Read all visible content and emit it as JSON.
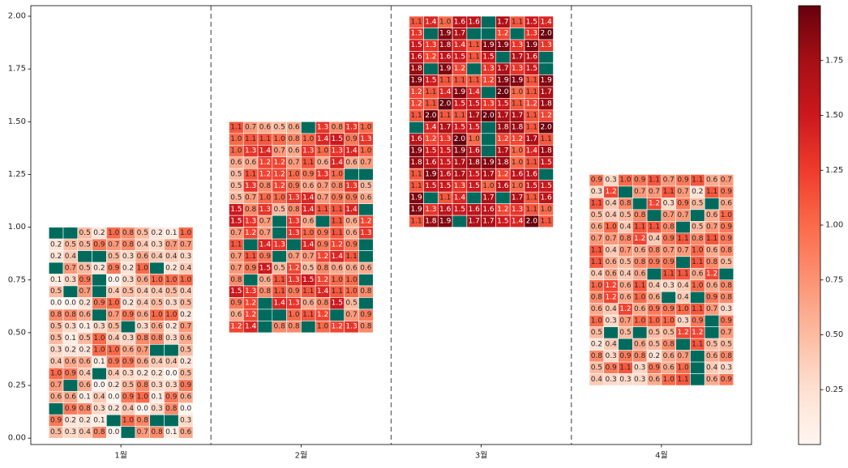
{
  "chart_data": {
    "type": "heatmap",
    "title": "",
    "xlabel": "",
    "ylabel": "",
    "xlim": [
      0.5,
      4.5
    ],
    "ylim": [
      -0.03,
      2.05
    ],
    "x_tick_labels": [
      "1월",
      "2월",
      "3월",
      "4월"
    ],
    "y_ticks": [
      0.0,
      0.25,
      0.5,
      0.75,
      1.0,
      1.25,
      1.5,
      1.75,
      2.0
    ],
    "y_tick_labels": [
      "0.00",
      "0.25",
      "0.50",
      "0.75",
      "1.00",
      "1.25",
      "1.50",
      "1.75",
      "2.00"
    ],
    "grid": false,
    "separators_at": [
      1.5,
      2.5,
      3.5
    ],
    "colormap": "Reds",
    "missing_color": "#006b5d",
    "colorbar": {
      "vmin": 0.0,
      "vmax": 2.0,
      "ticks": [
        0.25,
        0.5,
        0.75,
        1.0,
        1.25,
        1.5,
        1.75
      ],
      "tick_labels": [
        "0.25",
        "0.50",
        "0.75",
        "1.00",
        "1.25",
        "1.50",
        "1.75"
      ],
      "placement": "right"
    },
    "blocks": [
      {
        "category": "1월",
        "y_range": [
          0.0,
          1.0
        ],
        "cells": [
          [
            "",
            "",
            "0.5",
            "0.2",
            "1.0",
            "0.8",
            "0.5",
            "0.2",
            "0.1",
            "1.0"
          ],
          [
            "0.2",
            "0.5",
            "0.5",
            "0.9",
            "0.7",
            "0.8",
            "0.4",
            "0.3",
            "0.7",
            "0.7"
          ],
          [
            "0.2",
            "0.4",
            "",
            "",
            "0.5",
            "0.3",
            "0.6",
            "0.4",
            "0.4",
            "0.3"
          ],
          [
            "",
            "0.7",
            "0.5",
            "0.2",
            "0.9",
            "0.2",
            "1.0",
            "",
            "0.2",
            "0.4"
          ],
          [
            "0.1",
            "0.3",
            "0.9",
            "",
            "0.0",
            "0.3",
            "0.6",
            "1.0",
            "1.0",
            "1.0"
          ],
          [
            "0.5",
            "",
            "0.7",
            "",
            "0.4",
            "0.5",
            "0.4",
            "0.4",
            "0.5",
            "0.4"
          ],
          [
            "0.0",
            "0.0",
            "0.2",
            "0.9",
            "1.0",
            "0.2",
            "0.4",
            "0.5",
            "0.3",
            "0.5"
          ],
          [
            "0.8",
            "0.8",
            "0.6",
            "",
            "0.7",
            "0.9",
            "0.6",
            "1.0",
            "1.0",
            "0.2"
          ],
          [
            "0.5",
            "0.3",
            "0.1",
            "0.3",
            "0.5",
            "",
            "0.3",
            "0.6",
            "0.2",
            "0.7"
          ],
          [
            "0.5",
            "0.1",
            "0.5",
            "1.0",
            "0.4",
            "0.3",
            "0.8",
            "0.8",
            "0.3",
            "0.6"
          ],
          [
            "0.3",
            "0.2",
            "0.2",
            "1.0",
            "1.0",
            "0.6",
            "0.7",
            "",
            "",
            "0.5"
          ],
          [
            "0.4",
            "0.6",
            "0.6",
            "0.1",
            "0.9",
            "0.9",
            "0.6",
            "0.4",
            "0.4",
            "0.2"
          ],
          [
            "1.0",
            "0.9",
            "0.4",
            "",
            "0.4",
            "0.3",
            "0.2",
            "0.2",
            "0.0",
            "0.5"
          ],
          [
            "0.7",
            "",
            "0.6",
            "0.0",
            "0.2",
            "0.5",
            "0.8",
            "0.3",
            "0.3",
            "0.9"
          ],
          [
            "0.6",
            "0.6",
            "0.1",
            "0.4",
            "0.0",
            "0.9",
            "1.0",
            "0.1",
            "0.9",
            "0.6"
          ],
          [
            "",
            "0.9",
            "0.8",
            "0.3",
            "0.2",
            "0.4",
            "0.0",
            "0.3",
            "0.8",
            "0.0"
          ],
          [
            "0.9",
            "0.2",
            "0.2",
            "0.1",
            "",
            "1.0",
            "0.8",
            "",
            "",
            "0.3"
          ],
          [
            "0.5",
            "0.3",
            "0.4",
            "0.8",
            "0.0",
            "",
            "0.7",
            "0.8",
            "0.1",
            "0.6"
          ]
        ]
      },
      {
        "category": "2월",
        "y_range": [
          0.5,
          1.5
        ],
        "cells": [
          [
            "1.1",
            "0.7",
            "0.6",
            "0.5",
            "0.6",
            "",
            "1.3",
            "0.8",
            "1.3",
            "1.0"
          ],
          [
            "1.0",
            "1.1",
            "1.1",
            "1.0",
            "0.8",
            "1.0",
            "1.4",
            "1.5",
            "0.9",
            "1.3"
          ],
          [
            "1.0",
            "1.3",
            "1.4",
            "0.7",
            "0.6",
            "1.3",
            "1.0",
            "1.3",
            "1.4",
            "1.0"
          ],
          [
            "0.6",
            "0.6",
            "1.2",
            "1.2",
            "0.7",
            "1.1",
            "0.6",
            "1.4",
            "0.6",
            "0.7"
          ],
          [
            "0.5",
            "1.1",
            "1.2",
            "1.2",
            "1.0",
            "0.9",
            "1.3",
            "1.0",
            "",
            ""
          ],
          [
            "0.5",
            "1.3",
            "0.8",
            "1.2",
            "0.9",
            "0.6",
            "0.7",
            "0.8",
            "1.3",
            "0.5"
          ],
          [
            "0.5",
            "0.7",
            "1.0",
            "1.0",
            "1.3",
            "1.4",
            "0.7",
            "0.9",
            "0.9",
            "0.6"
          ],
          [
            "1.5",
            "0.8",
            "1.3",
            "0.5",
            "0.8",
            "1.4",
            "1.1",
            "1.1",
            "1.4",
            ""
          ],
          [
            "1.5",
            "1.3",
            "0.7",
            "",
            "1.3",
            "0.6",
            "",
            "1.1",
            "0.6",
            "1.2"
          ],
          [
            "0.7",
            "1.2",
            "0.7",
            "",
            "1.3",
            "1.0",
            "0.9",
            "1.1",
            "0.6",
            "1.3"
          ],
          [
            "1.1",
            "",
            "1.4",
            "1.3",
            "",
            "1.4",
            "0.9",
            "1.2",
            "0.9",
            ""
          ],
          [
            "0.7",
            "1.1",
            "0.9",
            "",
            "0.7",
            "0.7",
            "1.2",
            "1.4",
            "1.1",
            ""
          ],
          [
            "0.7",
            "0.9",
            "1.5",
            "0.5",
            "1.2",
            "0.5",
            "0.8",
            "0.6",
            "0.6",
            "0.6"
          ],
          [
            "0.8",
            "",
            "0.6",
            "1.1",
            "1.3",
            "1.5",
            "1.2",
            "1.0",
            "1.0",
            ""
          ],
          [
            "1.5",
            "1.3",
            "0.8",
            "1.1",
            "0.9",
            "1.1",
            "1.4",
            "1.1",
            "1.0",
            "0.8"
          ],
          [
            "0.9",
            "1.2",
            "",
            "1.4",
            "1.3",
            "0.6",
            "0.8",
            "1.5",
            "0.5",
            ""
          ],
          [
            "0.6",
            "1.2",
            "",
            "",
            "1.0",
            "1.1",
            "1.2",
            "",
            "0.7",
            "0.9"
          ],
          [
            "1.2",
            "1.4",
            "",
            "0.8",
            "0.8",
            "",
            "1.0",
            "1.2",
            "1.3",
            "0.8"
          ]
        ]
      },
      {
        "category": "3월",
        "y_range": [
          1.0,
          2.0
        ],
        "cells": [
          [
            "1.1",
            "1.4",
            "1.0",
            "1.6",
            "1.6",
            "",
            "1.7",
            "1.1",
            "1.5",
            "1.4"
          ],
          [
            "1.3",
            "",
            "1.9",
            "1.7",
            "",
            "",
            "1.2",
            "",
            "1.3",
            "2.0"
          ],
          [
            "1.5",
            "1.3",
            "1.8",
            "1.4",
            "1.1",
            "1.9",
            "1.9",
            "1.3",
            "1.9",
            "1.3"
          ],
          [
            "1.6",
            "1.2",
            "1.6",
            "1.5",
            "1.1",
            "1.5",
            "",
            "1.7",
            "1.6",
            ""
          ],
          [
            "1.8",
            "",
            "1.9",
            "1.2",
            "",
            "1.3",
            "1.7",
            "1.3",
            "1.5",
            ""
          ],
          [
            "1.9",
            "1.5",
            "1.1",
            "1.1",
            "1.1",
            "1.2",
            "1.9",
            "1.9",
            "1.1",
            "1.9"
          ],
          [
            "1.2",
            "1.1",
            "1.4",
            "1.9",
            "1.4",
            "",
            "2.0",
            "1.0",
            "1.1",
            "1.7"
          ],
          [
            "1.2",
            "1.1",
            "2.0",
            "1.5",
            "1.5",
            "1.3",
            "1.5",
            "1.1",
            "1.2",
            "1.8"
          ],
          [
            "1.1",
            "2.0",
            "1.1",
            "1.1",
            "1.7",
            "2.0",
            "1.7",
            "1.7",
            "1.1",
            "1.2"
          ],
          [
            "",
            "1.4",
            "1.7",
            "1.5",
            "1.5",
            "",
            "1.8",
            "1.8",
            "1.1",
            "2.0"
          ],
          [
            "1.6",
            "1.2",
            "1.3",
            "2.0",
            "1.0",
            "",
            "1.2",
            "1.2",
            "1.7",
            "1.1"
          ],
          [
            "1.9",
            "1.5",
            "1.5",
            "1.9",
            "1.6",
            "",
            "1.7",
            "1.0",
            "1.4",
            "1.8"
          ],
          [
            "1.8",
            "1.6",
            "1.5",
            "1.7",
            "1.8",
            "1.9",
            "1.8",
            "1.0",
            "1.1",
            "1.5"
          ],
          [
            "1.1",
            "1.9",
            "1.6",
            "1.7",
            "1.5",
            "1.7",
            "1.2",
            "1.6",
            "1.6",
            ""
          ],
          [
            "1.1",
            "1.5",
            "1.5",
            "1.3",
            "1.5",
            "1.0",
            "1.6",
            "1.0",
            "1.5",
            "1.5"
          ],
          [
            "1.9",
            "",
            "1.1",
            "1.4",
            "",
            "1.7",
            "",
            "1.7",
            "1.1",
            "1.6"
          ],
          [
            "1.9",
            "1.3",
            "1.6",
            "1.5",
            "1.6",
            "1.6",
            "1.2",
            "1.3",
            "1.1",
            "1.0"
          ],
          [
            "1.1",
            "1.8",
            "1.9",
            "",
            "1.7",
            "1.7",
            "1.5",
            "1.4",
            "2.0",
            "1.1"
          ]
        ]
      },
      {
        "category": "4월",
        "y_range": [
          0.25,
          1.25
        ],
        "cells": [
          [
            "0.9",
            "0.3",
            "1.0",
            "0.9",
            "1.1",
            "0.7",
            "0.9",
            "1.1",
            "0.6",
            "0.7"
          ],
          [
            "0.3",
            "1.2",
            "",
            "0.7",
            "0.7",
            "1.1",
            "0.7",
            "0.2",
            "1.1",
            "0.9"
          ],
          [
            "1.1",
            "0.4",
            "0.8",
            "",
            "1.2",
            "0.3",
            "0.9",
            "0.5",
            "",
            "0.6"
          ],
          [
            "0.5",
            "0.4",
            "0.5",
            "0.8",
            "",
            "0.7",
            "0.7",
            "",
            "0.6",
            "1.0"
          ],
          [
            "0.6",
            "1.0",
            "0.4",
            "1.1",
            "1.1",
            "0.8",
            "",
            "0.5",
            "0.7",
            "0.9"
          ],
          [
            "0.7",
            "0.7",
            "0.8",
            "1.2",
            "0.4",
            "0.9",
            "1.1",
            "0.8",
            "1.1",
            "0.9"
          ],
          [
            "1.1",
            "0.4",
            "0.7",
            "0.6",
            "0.8",
            "0.7",
            "0.7",
            "1.0",
            "0.6",
            "0.8"
          ],
          [
            "1.1",
            "0.6",
            "0.5",
            "0.8",
            "0.9",
            "0.9",
            "",
            "1.1",
            "0.8",
            "0.5"
          ],
          [
            "0.4",
            "0.6",
            "0.4",
            "0.6",
            "",
            "1.1",
            "1.1",
            "0.6",
            "1.2",
            ""
          ],
          [
            "1.0",
            "1.2",
            "0.6",
            "1.1",
            "0.4",
            "0.3",
            "0.4",
            "1.0",
            "0.6",
            "0.8"
          ],
          [
            "0.8",
            "1.2",
            "0.6",
            "1.0",
            "0.6",
            "",
            "0.4",
            "",
            "0.9",
            "0.8"
          ],
          [
            "0.6",
            "0.4",
            "1.2",
            "0.6",
            "0.9",
            "0.9",
            "1.0",
            "1.1",
            "0.7",
            "0.3"
          ],
          [
            "1.0",
            "0.3",
            "0.7",
            "1.0",
            "1.0",
            "1.0",
            "0.3",
            "0.9",
            "",
            "0.9"
          ],
          [
            "0.5",
            "",
            "0.5",
            "",
            "0.5",
            "0.5",
            "1.2",
            "1.2",
            "",
            "0.7"
          ],
          [
            "0.2",
            "0.4",
            "",
            "0.6",
            "0.5",
            "0.8",
            "",
            "1.1",
            "0.5",
            "0.5"
          ],
          [
            "0.8",
            "0.3",
            "0.9",
            "0.8",
            "0.2",
            "0.6",
            "0.7",
            "",
            "0.6",
            "0.8"
          ],
          [
            "0.5",
            "0.9",
            "1.1",
            "0.3",
            "0.9",
            "0.6",
            "1.0",
            "",
            "0.4",
            "0.3"
          ],
          [
            "0.4",
            "0.3",
            "0.3",
            "0.3",
            "0.6",
            "1.0",
            "1.1",
            "",
            "0.6",
            "0.9"
          ]
        ]
      }
    ]
  }
}
